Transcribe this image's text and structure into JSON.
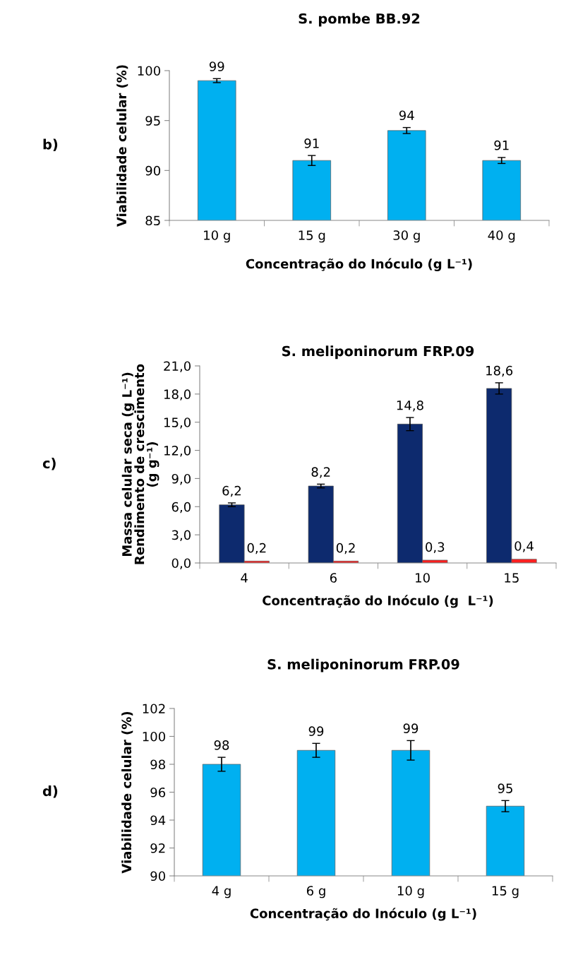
{
  "chart_data": [
    {
      "type": "bar",
      "title": "S. pombe BB.92",
      "xlabel": "Concentração do Inóculo (g L⁻¹)",
      "ylabel": "Viabilidade celular (%)",
      "annotations": [
        "b)"
      ],
      "categories": [
        "10 g",
        "15 g",
        "30 g",
        "40 g"
      ],
      "series": [
        {
          "color": "#00b0f0",
          "values": [
            99,
            91,
            94,
            91
          ],
          "errors": [
            0.2,
            0.5,
            0.3,
            0.3
          ],
          "value_labels": [
            "99",
            "91",
            "94",
            "91"
          ]
        }
      ],
      "ylim": [
        85,
        100
      ],
      "yticks": [
        85,
        90,
        95,
        100
      ],
      "grid": false,
      "legend": false
    },
    {
      "type": "bar",
      "title": "S. meliponinorum FRP.09",
      "xlabel": "Concentração do Inóculo (g  L⁻¹)",
      "ylabel": "Massa celular seca (g L⁻¹)\nRendimento de crescimento\n(g g⁻¹)",
      "annotations": [
        "c)"
      ],
      "categories": [
        "4",
        "6",
        "10",
        "15"
      ],
      "series": [
        {
          "color": "#0d2a6e",
          "values": [
            6.2,
            8.2,
            14.8,
            18.6
          ],
          "errors": [
            0.2,
            0.2,
            0.7,
            0.6
          ],
          "value_labels": [
            "6,2",
            "8,2",
            "14,8",
            "18,6"
          ]
        },
        {
          "color": "#ff2020",
          "values": [
            0.2,
            0.2,
            0.3,
            0.4
          ],
          "value_labels": [
            "0,2",
            "0,2",
            "0,3",
            "0,4"
          ]
        }
      ],
      "ylim": [
        0,
        21
      ],
      "yticks": [
        {
          "value": 0,
          "label": "0,0"
        },
        {
          "value": 3,
          "label": "3,0"
        },
        {
          "value": 6,
          "label": "6,0"
        },
        {
          "value": 9,
          "label": "9,0"
        },
        {
          "value": 12,
          "label": "12,0"
        },
        {
          "value": 15,
          "label": "15,0"
        },
        {
          "value": 18,
          "label": "18,0"
        },
        {
          "value": 21,
          "label": "21,0"
        }
      ],
      "grid": false,
      "legend": false
    },
    {
      "type": "bar",
      "title": "S. meliponinorum FRP.09",
      "xlabel": "Concentração do Inóculo (g L⁻¹)",
      "ylabel": "Viabilidade celular (%)",
      "annotations": [
        "d)"
      ],
      "categories": [
        "4 g",
        "6 g",
        "10 g",
        "15 g"
      ],
      "series": [
        {
          "color": "#00b0f0",
          "values": [
            98,
            99,
            99,
            95
          ],
          "errors": [
            0.5,
            0.5,
            0.7,
            0.4
          ],
          "value_labels": [
            "98",
            "99",
            "99",
            "95"
          ]
        }
      ],
      "ylim": [
        90,
        102
      ],
      "yticks": [
        90,
        92,
        94,
        96,
        98,
        100,
        102
      ],
      "grid": false,
      "legend": false
    }
  ]
}
